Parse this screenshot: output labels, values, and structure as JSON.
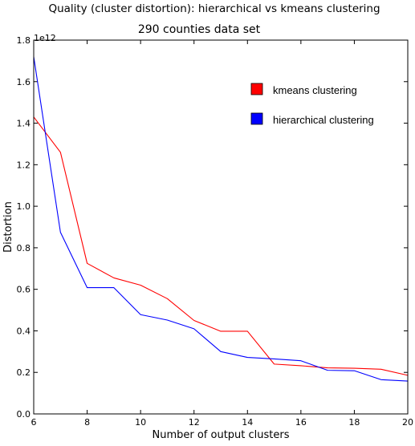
{
  "chart_data": {
    "type": "line",
    "title": "Quality (cluster distortion): hierarchical vs kmeans clustering",
    "subtitle": "290 counties data set",
    "xlabel": "Number of output clusters",
    "ylabel": "Distortion",
    "y_offset_label": "1e12",
    "xlim": [
      6,
      20
    ],
    "ylim": [
      0.0,
      1.8
    ],
    "x_ticks": [
      6,
      8,
      10,
      12,
      14,
      16,
      18,
      20
    ],
    "y_ticks": [
      0.0,
      0.2,
      0.4,
      0.6,
      0.8,
      1.0,
      1.2,
      1.4,
      1.6,
      1.8
    ],
    "grid": false,
    "legend_position": "top-right",
    "x": [
      6,
      7,
      8,
      9,
      10,
      11,
      12,
      13,
      14,
      15,
      16,
      17,
      18,
      19,
      20
    ],
    "series": [
      {
        "name": "kmeans clustering",
        "color": "#ff0000",
        "values": [
          1.43,
          1.26,
          0.725,
          0.655,
          0.62,
          0.555,
          0.45,
          0.398,
          0.398,
          0.24,
          0.232,
          0.222,
          0.22,
          0.215,
          0.186
        ]
      },
      {
        "name": "hierarchical clustering",
        "color": "#0000ff",
        "values": [
          1.72,
          0.875,
          0.608,
          0.608,
          0.478,
          0.452,
          0.41,
          0.3,
          0.272,
          0.265,
          0.256,
          0.21,
          0.208,
          0.165,
          0.158
        ]
      }
    ]
  }
}
